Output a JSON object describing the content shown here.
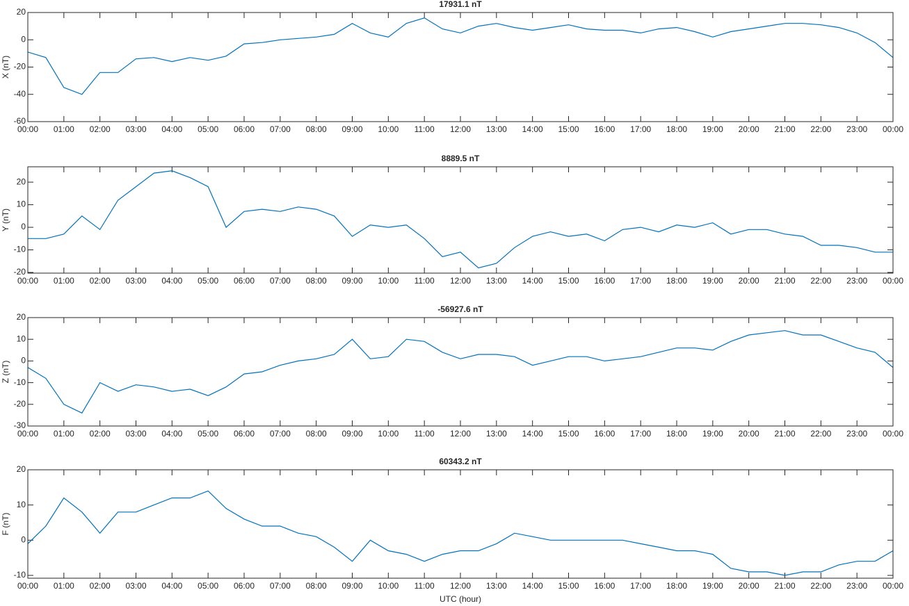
{
  "chart_data": [
    {
      "type": "line",
      "title": "17931.1 nT",
      "y_label": "X (nT)",
      "x": [
        0,
        0.5,
        1,
        1.5,
        2,
        2.5,
        3,
        3.5,
        4,
        4.5,
        5,
        5.5,
        6,
        6.5,
        7,
        7.5,
        8,
        8.5,
        9,
        9.5,
        10,
        10.5,
        11,
        11.5,
        12,
        12.5,
        13,
        13.5,
        14,
        14.5,
        15,
        15.5,
        16,
        16.5,
        17,
        17.5,
        18,
        18.5,
        19,
        19.5,
        20,
        20.5,
        21,
        21.5,
        22,
        22.5,
        23,
        23.5,
        24
      ],
      "series": [
        {
          "name": "X",
          "color": "#0072bd",
          "values": [
            -9,
            -13,
            -35,
            -40,
            -24,
            -24,
            -14,
            -13,
            -16,
            -13,
            -15,
            -12,
            -3,
            -2,
            0,
            1,
            2,
            4,
            12,
            5,
            2,
            12,
            16,
            8,
            5,
            10,
            12,
            9,
            7,
            9,
            11,
            8,
            7,
            7,
            5,
            8,
            9,
            6,
            2,
            6,
            8,
            10,
            12,
            12,
            11,
            9,
            5,
            -2,
            -13
          ]
        }
      ],
      "xlim": [
        0,
        24
      ],
      "ylim": [
        -60,
        20
      ],
      "yticks": [
        -60,
        -40,
        -20,
        0,
        20
      ],
      "xticks": [
        {
          "value": 0,
          "label": "00:00"
        },
        {
          "value": 1,
          "label": "01:00"
        },
        {
          "value": 2,
          "label": "02:00"
        },
        {
          "value": 3,
          "label": "03:00"
        },
        {
          "value": 4,
          "label": "04:00"
        },
        {
          "value": 5,
          "label": "05:00"
        },
        {
          "value": 6,
          "label": "06:00"
        },
        {
          "value": 7,
          "label": "07:00"
        },
        {
          "value": 8,
          "label": "08:00"
        },
        {
          "value": 9,
          "label": "09:00"
        },
        {
          "value": 10,
          "label": "10:00"
        },
        {
          "value": 11,
          "label": "11:00"
        },
        {
          "value": 12,
          "label": "12:00"
        },
        {
          "value": 13,
          "label": "13:00"
        },
        {
          "value": 14,
          "label": "14:00"
        },
        {
          "value": 15,
          "label": "15:00"
        },
        {
          "value": 16,
          "label": "16:00"
        },
        {
          "value": 17,
          "label": "17:00"
        },
        {
          "value": 18,
          "label": "18:00"
        },
        {
          "value": 19,
          "label": "19:00"
        },
        {
          "value": 20,
          "label": "20:00"
        },
        {
          "value": 21,
          "label": "21:00"
        },
        {
          "value": 22,
          "label": "22:00"
        },
        {
          "value": 23,
          "label": "23:00"
        },
        {
          "value": 24,
          "label": "00:00"
        }
      ]
    },
    {
      "type": "line",
      "title": "8889.5 nT",
      "y_label": "Y (nT)",
      "x": [
        0,
        0.5,
        1,
        1.5,
        2,
        2.5,
        3,
        3.5,
        4,
        4.5,
        5,
        5.5,
        6,
        6.5,
        7,
        7.5,
        8,
        8.5,
        9,
        9.5,
        10,
        10.5,
        11,
        11.5,
        12,
        12.5,
        13,
        13.5,
        14,
        14.5,
        15,
        15.5,
        16,
        16.5,
        17,
        17.5,
        18,
        18.5,
        19,
        19.5,
        20,
        20.5,
        21,
        21.5,
        22,
        22.5,
        23,
        23.5,
        24
      ],
      "series": [
        {
          "name": "Y",
          "color": "#0072bd",
          "values": [
            -5,
            -5,
            -3,
            5,
            -1,
            12,
            18,
            24,
            25,
            22,
            18,
            0,
            7,
            8,
            7,
            9,
            8,
            5,
            -4,
            1,
            0,
            1,
            -5,
            -13,
            -11,
            -18,
            -16,
            -9,
            -4,
            -2,
            -4,
            -3,
            -6,
            -1,
            0,
            -2,
            1,
            0,
            2,
            -3,
            -1,
            -1,
            -3,
            -4,
            -8,
            -8,
            -9,
            -11,
            -11
          ]
        }
      ],
      "xlim": [
        0,
        24
      ],
      "ylim": [
        -20.3,
        26.8
      ],
      "yticks": [
        -20,
        -10,
        0,
        10,
        20
      ],
      "xticks": [
        {
          "value": 0,
          "label": "00:00"
        },
        {
          "value": 1,
          "label": "01:00"
        },
        {
          "value": 2,
          "label": "02:00"
        },
        {
          "value": 3,
          "label": "03:00"
        },
        {
          "value": 4,
          "label": "04:00"
        },
        {
          "value": 5,
          "label": "05:00"
        },
        {
          "value": 6,
          "label": "06:00"
        },
        {
          "value": 7,
          "label": "07:00"
        },
        {
          "value": 8,
          "label": "08:00"
        },
        {
          "value": 9,
          "label": "09:00"
        },
        {
          "value": 10,
          "label": "10:00"
        },
        {
          "value": 11,
          "label": "11:00"
        },
        {
          "value": 12,
          "label": "12:00"
        },
        {
          "value": 13,
          "label": "13:00"
        },
        {
          "value": 14,
          "label": "14:00"
        },
        {
          "value": 15,
          "label": "15:00"
        },
        {
          "value": 16,
          "label": "16:00"
        },
        {
          "value": 17,
          "label": "17:00"
        },
        {
          "value": 18,
          "label": "18:00"
        },
        {
          "value": 19,
          "label": "19:00"
        },
        {
          "value": 20,
          "label": "20:00"
        },
        {
          "value": 21,
          "label": "21:00"
        },
        {
          "value": 22,
          "label": "22:00"
        },
        {
          "value": 23,
          "label": "23:00"
        },
        {
          "value": 24,
          "label": "00:00"
        }
      ]
    },
    {
      "type": "line",
      "title": "-56927.6 nT",
      "y_label": "Z (nT)",
      "x": [
        0,
        0.5,
        1,
        1.5,
        2,
        2.5,
        3,
        3.5,
        4,
        4.5,
        5,
        5.5,
        6,
        6.5,
        7,
        7.5,
        8,
        8.5,
        9,
        9.5,
        10,
        10.5,
        11,
        11.5,
        12,
        12.5,
        13,
        13.5,
        14,
        14.5,
        15,
        15.5,
        16,
        16.5,
        17,
        17.5,
        18,
        18.5,
        19,
        19.5,
        20,
        20.5,
        21,
        21.5,
        22,
        22.5,
        23,
        23.5,
        24
      ],
      "series": [
        {
          "name": "Z",
          "color": "#0072bd",
          "values": [
            -3,
            -8,
            -20,
            -24,
            -10,
            -14,
            -11,
            -12,
            -14,
            -13,
            -16,
            -12,
            -6,
            -5,
            -2,
            0,
            1,
            3,
            10,
            1,
            2,
            10,
            9,
            4,
            1,
            3,
            3,
            2,
            -2,
            0,
            2,
            2,
            0,
            1,
            2,
            4,
            6,
            6,
            5,
            9,
            12,
            13,
            14,
            12,
            12,
            9,
            6,
            4,
            -3
          ]
        }
      ],
      "xlim": [
        0,
        24
      ],
      "ylim": [
        -30,
        20
      ],
      "yticks": [
        -30,
        -20,
        -10,
        0,
        10,
        20
      ],
      "xticks": [
        {
          "value": 0,
          "label": "00:00"
        },
        {
          "value": 1,
          "label": "01:00"
        },
        {
          "value": 2,
          "label": "02:00"
        },
        {
          "value": 3,
          "label": "03:00"
        },
        {
          "value": 4,
          "label": "04:00"
        },
        {
          "value": 5,
          "label": "05:00"
        },
        {
          "value": 6,
          "label": "06:00"
        },
        {
          "value": 7,
          "label": "07:00"
        },
        {
          "value": 8,
          "label": "08:00"
        },
        {
          "value": 9,
          "label": "09:00"
        },
        {
          "value": 10,
          "label": "10:00"
        },
        {
          "value": 11,
          "label": "11:00"
        },
        {
          "value": 12,
          "label": "12:00"
        },
        {
          "value": 13,
          "label": "13:00"
        },
        {
          "value": 14,
          "label": "14:00"
        },
        {
          "value": 15,
          "label": "15:00"
        },
        {
          "value": 16,
          "label": "16:00"
        },
        {
          "value": 17,
          "label": "17:00"
        },
        {
          "value": 18,
          "label": "18:00"
        },
        {
          "value": 19,
          "label": "19:00"
        },
        {
          "value": 20,
          "label": "20:00"
        },
        {
          "value": 21,
          "label": "21:00"
        },
        {
          "value": 22,
          "label": "22:00"
        },
        {
          "value": 23,
          "label": "23:00"
        },
        {
          "value": 24,
          "label": "00:00"
        }
      ]
    },
    {
      "type": "line",
      "title": "60343.2 nT",
      "y_label": "F (nT)",
      "x_label": "UTC (hour)",
      "x": [
        0,
        0.5,
        1,
        1.5,
        2,
        2.5,
        3,
        3.5,
        4,
        4.5,
        5,
        5.5,
        6,
        6.5,
        7,
        7.5,
        8,
        8.5,
        9,
        9.5,
        10,
        10.5,
        11,
        11.5,
        12,
        12.5,
        13,
        13.5,
        14,
        14.5,
        15,
        15.5,
        16,
        16.5,
        17,
        17.5,
        18,
        18.5,
        19,
        19.5,
        20,
        20.5,
        21,
        21.5,
        22,
        22.5,
        23,
        23.5,
        24
      ],
      "series": [
        {
          "name": "F",
          "color": "#0072bd",
          "values": [
            -1,
            4,
            12,
            8,
            2,
            8,
            8,
            10,
            12,
            12,
            14,
            9,
            6,
            4,
            4,
            2,
            1,
            -2,
            -6,
            0,
            -3,
            -4,
            -6,
            -4,
            -3,
            -3,
            -1,
            2,
            1,
            0,
            0,
            0,
            0,
            0,
            -1,
            -2,
            -3,
            -3,
            -4,
            -8,
            -9,
            -9,
            -10,
            -9,
            -9,
            -7,
            -6,
            -6,
            -3
          ]
        }
      ],
      "xlim": [
        0,
        24
      ],
      "ylim": [
        -10.8,
        20
      ],
      "yticks": [
        -10,
        0,
        10,
        20
      ],
      "xticks": [
        {
          "value": 0,
          "label": "00:00"
        },
        {
          "value": 1,
          "label": "01:00"
        },
        {
          "value": 2,
          "label": "02:00"
        },
        {
          "value": 3,
          "label": "03:00"
        },
        {
          "value": 4,
          "label": "04:00"
        },
        {
          "value": 5,
          "label": "05:00"
        },
        {
          "value": 6,
          "label": "06:00"
        },
        {
          "value": 7,
          "label": "07:00"
        },
        {
          "value": 8,
          "label": "08:00"
        },
        {
          "value": 9,
          "label": "09:00"
        },
        {
          "value": 10,
          "label": "10:00"
        },
        {
          "value": 11,
          "label": "11:00"
        },
        {
          "value": 12,
          "label": "12:00"
        },
        {
          "value": 13,
          "label": "13:00"
        },
        {
          "value": 14,
          "label": "14:00"
        },
        {
          "value": 15,
          "label": "15:00"
        },
        {
          "value": 16,
          "label": "16:00"
        },
        {
          "value": 17,
          "label": "17:00"
        },
        {
          "value": 18,
          "label": "18:00"
        },
        {
          "value": 19,
          "label": "19:00"
        },
        {
          "value": 20,
          "label": "20:00"
        },
        {
          "value": 21,
          "label": "21:00"
        },
        {
          "value": 22,
          "label": "22:00"
        },
        {
          "value": 23,
          "label": "23:00"
        },
        {
          "value": 24,
          "label": "00:00"
        }
      ]
    }
  ]
}
